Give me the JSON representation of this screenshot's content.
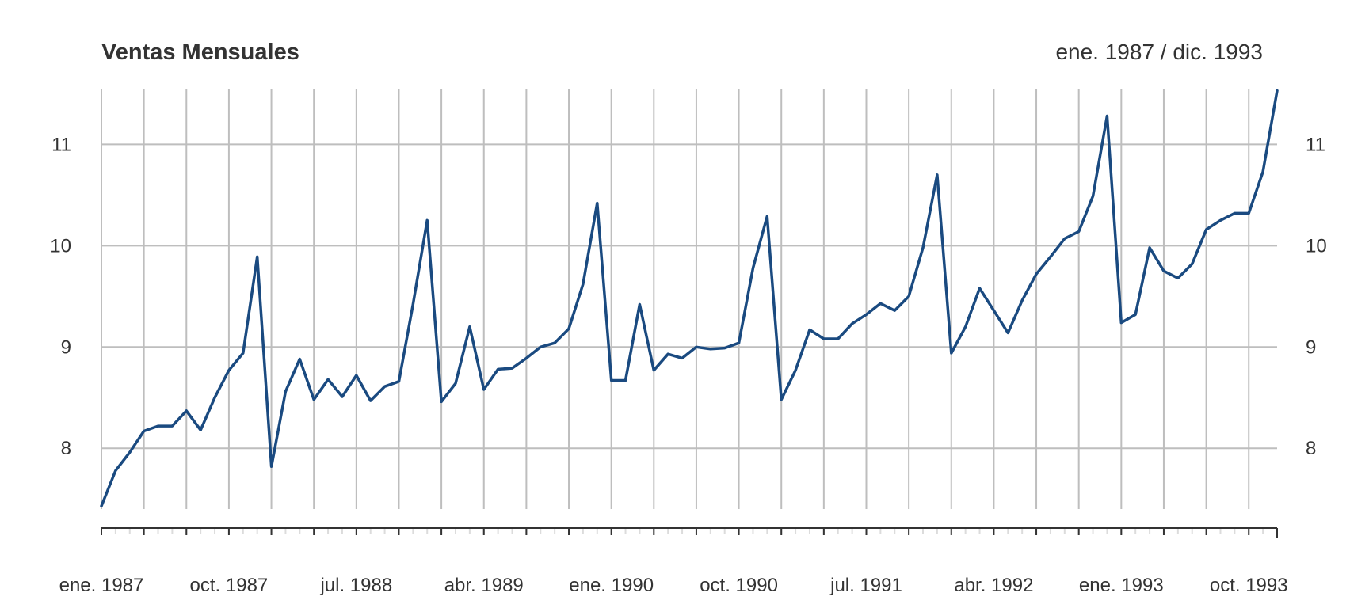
{
  "chart_data": {
    "type": "line",
    "title": "Ventas Mensuales",
    "subtitle": "ene. 1987 / dic. 1993",
    "xlabel": "",
    "ylabel": "",
    "series": [
      {
        "color": "#1a4a80",
        "x": [
          "ene. 1987",
          "feb. 1987",
          "mar. 1987",
          "abr. 1987",
          "may. 1987",
          "jun. 1987",
          "jul. 1987",
          "ago. 1987",
          "sep. 1987",
          "oct. 1987",
          "nov. 1987",
          "dic. 1987",
          "ene. 1988",
          "feb. 1988",
          "mar. 1988",
          "abr. 1988",
          "may. 1988",
          "jun. 1988",
          "jul. 1988",
          "ago. 1988",
          "sep. 1988",
          "oct. 1988",
          "nov. 1988",
          "dic. 1988",
          "ene. 1989",
          "feb. 1989",
          "mar. 1989",
          "abr. 1989",
          "may. 1989",
          "jun. 1989",
          "jul. 1989",
          "ago. 1989",
          "sep. 1989",
          "oct. 1989",
          "nov. 1989",
          "dic. 1989",
          "ene. 1990",
          "feb. 1990",
          "mar. 1990",
          "abr. 1990",
          "may. 1990",
          "jun. 1990",
          "jul. 1990",
          "ago. 1990",
          "sep. 1990",
          "oct. 1990",
          "nov. 1990",
          "dic. 1990",
          "ene. 1991",
          "feb. 1991",
          "mar. 1991",
          "abr. 1991",
          "may. 1991",
          "jun. 1991",
          "jul. 1991",
          "ago. 1991",
          "sep. 1991",
          "oct. 1991",
          "nov. 1991",
          "dic. 1991",
          "ene. 1992",
          "feb. 1992",
          "mar. 1992",
          "abr. 1992",
          "may. 1992",
          "jun. 1992",
          "jul. 1992",
          "ago. 1992",
          "sep. 1992",
          "oct. 1992",
          "nov. 1992",
          "dic. 1992",
          "ene. 1993",
          "feb. 1993",
          "mar. 1993",
          "abr. 1993",
          "may. 1993",
          "jun. 1993",
          "jul. 1993",
          "ago. 1993",
          "sep. 1993",
          "oct. 1993",
          "nov. 1993",
          "dic. 1993"
        ],
        "values": [
          7.43,
          7.78,
          7.96,
          8.17,
          8.22,
          8.22,
          8.37,
          8.18,
          8.5,
          8.77,
          8.94,
          9.89,
          7.82,
          8.56,
          8.88,
          8.48,
          8.68,
          8.51,
          8.72,
          8.47,
          8.61,
          8.66,
          9.42,
          10.25,
          8.46,
          8.64,
          9.2,
          8.58,
          8.78,
          8.79,
          8.89,
          9.0,
          9.04,
          9.18,
          9.62,
          10.42,
          8.67,
          8.67,
          9.42,
          8.77,
          8.93,
          8.89,
          9.0,
          8.98,
          8.99,
          9.04,
          9.78,
          10.29,
          8.48,
          8.77,
          9.17,
          9.08,
          9.08,
          9.23,
          9.32,
          9.43,
          9.36,
          9.5,
          9.98,
          10.7,
          8.94,
          9.2,
          9.58,
          9.36,
          9.14,
          9.46,
          9.72,
          9.89,
          10.07,
          10.14,
          10.49,
          11.28,
          9.24,
          9.32,
          9.98,
          9.75,
          9.68,
          9.82,
          10.16,
          10.25,
          10.32,
          10.32,
          10.73,
          11.53
        ]
      }
    ],
    "x_tick_labels": [
      "ene. 1987",
      "oct. 1987",
      "jul. 1988",
      "abr. 1989",
      "ene. 1990",
      "oct. 1990",
      "jul. 1991",
      "abr. 1992",
      "ene. 1993",
      "oct. 1993"
    ],
    "y_ticks": [
      8,
      9,
      10,
      11
    ],
    "ylim": [
      7.4,
      11.55
    ],
    "grid": true,
    "axis_color": "#333333",
    "grid_color": "#bebebe"
  }
}
